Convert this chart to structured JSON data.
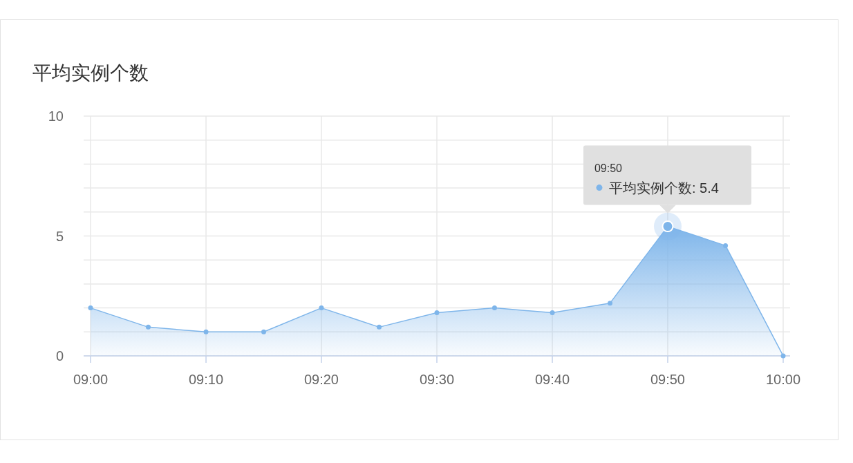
{
  "chart_data": {
    "type": "area",
    "title": "平均实例个数",
    "x": [
      9,
      9.0833,
      9.1667,
      9.25,
      9.3333,
      9.4167,
      9.5,
      9.5833,
      9.6667,
      9.75,
      9.8333,
      9.9167,
      10
    ],
    "series": [
      {
        "color": "#7eb5ea",
        "values": [
          2,
          1.2,
          1,
          1,
          2,
          1.2,
          1.8,
          2,
          1.8,
          2.2,
          5.4,
          4.6,
          0
        ]
      }
    ],
    "xlim": [
      9,
      10
    ],
    "xticks": [
      {
        "value": 9,
        "label": "09:00"
      },
      {
        "value": 9.1667,
        "label": "09:10"
      },
      {
        "value": 9.3333,
        "label": "09:20"
      },
      {
        "value": 9.5,
        "label": "09:30"
      },
      {
        "value": 9.6667,
        "label": "09:40"
      },
      {
        "value": 9.8333,
        "label": "09:50"
      },
      {
        "value": 10,
        "label": "10:00"
      }
    ],
    "ylim": [
      0,
      10
    ],
    "yticks": [
      0,
      {
        "value": 1,
        "label": null
      },
      {
        "value": 2,
        "label": null
      },
      {
        "value": 3,
        "label": null
      },
      {
        "value": 4,
        "label": null
      },
      5,
      {
        "value": 6,
        "label": null
      },
      {
        "value": 7,
        "label": null
      },
      {
        "value": 8,
        "label": null
      },
      {
        "value": 9,
        "label": null
      },
      10
    ],
    "annotations": [
      "09:50",
      {
        "text": "平均实例个数: 5.4",
        "x": 9.8333,
        "y": 5.4
      }
    ],
    "grid": true,
    "marker": "circle",
    "line_style": "solid"
  }
}
